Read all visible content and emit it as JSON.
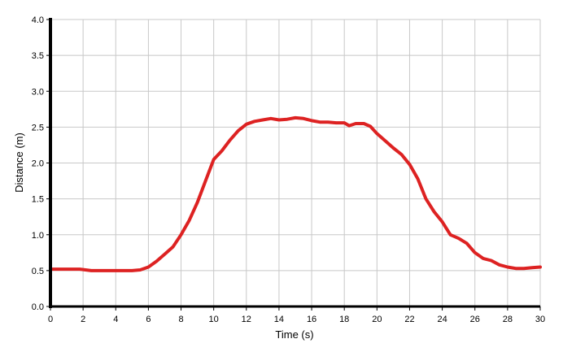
{
  "chart_data": {
    "type": "line",
    "title": "",
    "xlabel": "Time (s)",
    "ylabel": "Distance (m)",
    "xlim": [
      0,
      30
    ],
    "ylim": [
      0,
      4.0
    ],
    "x_ticks": [
      0,
      2,
      4,
      6,
      8,
      10,
      12,
      14,
      16,
      18,
      20,
      22,
      24,
      26,
      28,
      30
    ],
    "x_tick_labels": [
      "0",
      "2",
      "4",
      "6",
      "8",
      "10",
      "12",
      "14",
      "16",
      "18",
      "20",
      "22",
      "24",
      "26",
      "28",
      "30"
    ],
    "y_ticks": [
      0,
      0.5,
      1.0,
      1.5,
      2.0,
      2.5,
      3.0,
      3.5,
      4.0
    ],
    "y_tick_labels": [
      "0.0",
      "0.5",
      "1.0",
      "1.5",
      "2.0",
      "2.5",
      "3.0",
      "3.5",
      "4.0"
    ],
    "grid": true,
    "grid_color": "#c8c8c8",
    "line_color": "#dd2222",
    "axis_color": "#000000",
    "series": [
      {
        "name": "",
        "x": [
          0,
          1,
          1.8,
          2.5,
          3,
          4,
          5,
          5.5,
          6,
          6.5,
          7,
          7.5,
          8,
          8.5,
          9,
          9.5,
          10,
          10.5,
          11,
          11.5,
          12,
          12.5,
          13,
          13.5,
          14,
          14.5,
          15,
          15.5,
          16,
          16.5,
          17,
          17.5,
          18,
          18.3,
          18.7,
          19.2,
          19.6,
          20,
          20.5,
          21,
          21.5,
          22,
          22.5,
          23,
          23.5,
          24,
          24.5,
          25,
          25.5,
          26,
          26.5,
          27,
          27.5,
          28,
          28.5,
          29,
          29.5,
          30
        ],
        "y": [
          0.52,
          0.52,
          0.52,
          0.5,
          0.5,
          0.5,
          0.5,
          0.51,
          0.55,
          0.63,
          0.73,
          0.83,
          1.0,
          1.2,
          1.45,
          1.75,
          2.05,
          2.17,
          2.32,
          2.45,
          2.54,
          2.58,
          2.6,
          2.62,
          2.6,
          2.61,
          2.63,
          2.62,
          2.59,
          2.57,
          2.57,
          2.56,
          2.56,
          2.52,
          2.55,
          2.55,
          2.51,
          2.41,
          2.31,
          2.21,
          2.12,
          1.98,
          1.78,
          1.5,
          1.32,
          1.18,
          1.0,
          0.95,
          0.88,
          0.75,
          0.67,
          0.64,
          0.58,
          0.55,
          0.53,
          0.53,
          0.54,
          0.55
        ]
      }
    ]
  }
}
